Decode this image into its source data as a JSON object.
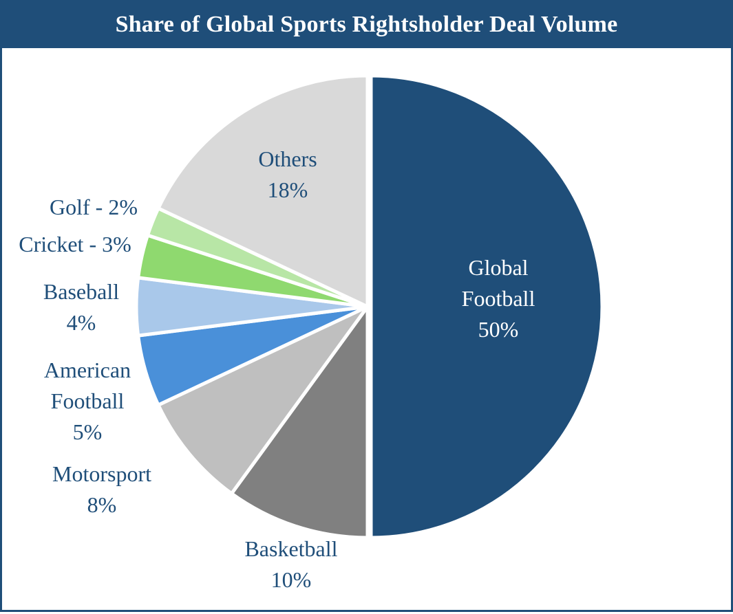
{
  "chart_data": {
    "type": "pie",
    "title": "Share of Global Sports Rightsholder Deal Volume",
    "unit": "%",
    "start_angle": "12 o'clock",
    "direction": "clockwise",
    "slices": [
      {
        "name": "Global Football",
        "value": 50,
        "label_lines": [
          "Global",
          "Football",
          "50%"
        ],
        "color": "#1f4e79",
        "label_color": "#ffffff"
      },
      {
        "name": "Basketball",
        "value": 10,
        "label_lines": [
          "Basketball",
          "10%"
        ],
        "color": "#808080",
        "label_color": "#1f4e79"
      },
      {
        "name": "Motorsport",
        "value": 8,
        "label_lines": [
          "Motorsport",
          "8%"
        ],
        "color": "#bfbfbf",
        "label_color": "#1f4e79"
      },
      {
        "name": "American Football",
        "value": 5,
        "label_lines": [
          "American",
          "Football",
          "5%"
        ],
        "color": "#4a90d9",
        "label_color": "#1f4e79"
      },
      {
        "name": "Baseball",
        "value": 4,
        "label_lines": [
          "Baseball",
          "4%"
        ],
        "color": "#a9c8ea",
        "label_color": "#1f4e79"
      },
      {
        "name": "Cricket",
        "value": 3,
        "label_lines": [
          "Cricket - 3%"
        ],
        "color": "#8fd96f",
        "label_color": "#1f4e79"
      },
      {
        "name": "Golf",
        "value": 2,
        "label_lines": [
          "Golf - 2%"
        ],
        "color": "#b8e6a6",
        "label_color": "#1f4e79"
      },
      {
        "name": "Others",
        "value": 18,
        "label_lines": [
          "Others",
          "18%"
        ],
        "color": "#d9d9d9",
        "label_color": "#1f4e79"
      }
    ]
  }
}
